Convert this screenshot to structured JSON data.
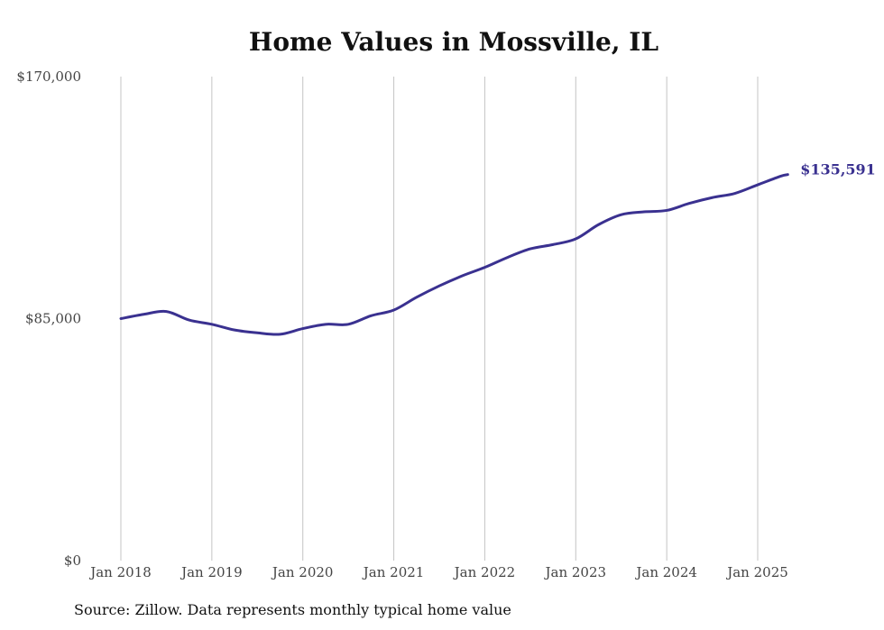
{
  "chart_data": {
    "type": "line",
    "title": "Home Values in Mossville, IL",
    "xlabel": "",
    "ylabel": "",
    "ylim": [
      0,
      170000
    ],
    "yticks": [
      0,
      85000,
      170000
    ],
    "ytick_labels": [
      "$0",
      "$85,000",
      "$170,000"
    ],
    "xticks": [
      2018,
      2019,
      2020,
      2021,
      2022,
      2023,
      2024,
      2025
    ],
    "xtick_labels": [
      "Jan 2018",
      "Jan 2019",
      "Jan 2020",
      "Jan 2021",
      "Jan 2022",
      "Jan 2023",
      "Jan 2024",
      "Jan 2025"
    ],
    "grid": "vertical",
    "line_color": "#3a3190",
    "end_label": "$135,591",
    "series": [
      {
        "name": "",
        "x": [
          2018.0,
          2018.25,
          2018.5,
          2018.75,
          2019.0,
          2019.25,
          2019.5,
          2019.75,
          2020.0,
          2020.25,
          2020.5,
          2020.75,
          2021.0,
          2021.25,
          2021.5,
          2021.75,
          2022.0,
          2022.25,
          2022.5,
          2022.75,
          2023.0,
          2023.25,
          2023.5,
          2023.75,
          2024.0,
          2024.25,
          2024.5,
          2024.75,
          2025.0,
          2025.25,
          2025.33
        ],
        "y": [
          85000,
          86500,
          87500,
          84500,
          83000,
          81000,
          80000,
          79500,
          81500,
          83000,
          83000,
          86000,
          88000,
          92500,
          96500,
          100000,
          103000,
          106500,
          109500,
          111000,
          113000,
          118000,
          121500,
          122500,
          123000,
          125500,
          127500,
          129000,
          132000,
          135000,
          135591
        ]
      }
    ]
  },
  "footer": {
    "source": "Source: Zillow. Data represents monthly typical home value"
  }
}
